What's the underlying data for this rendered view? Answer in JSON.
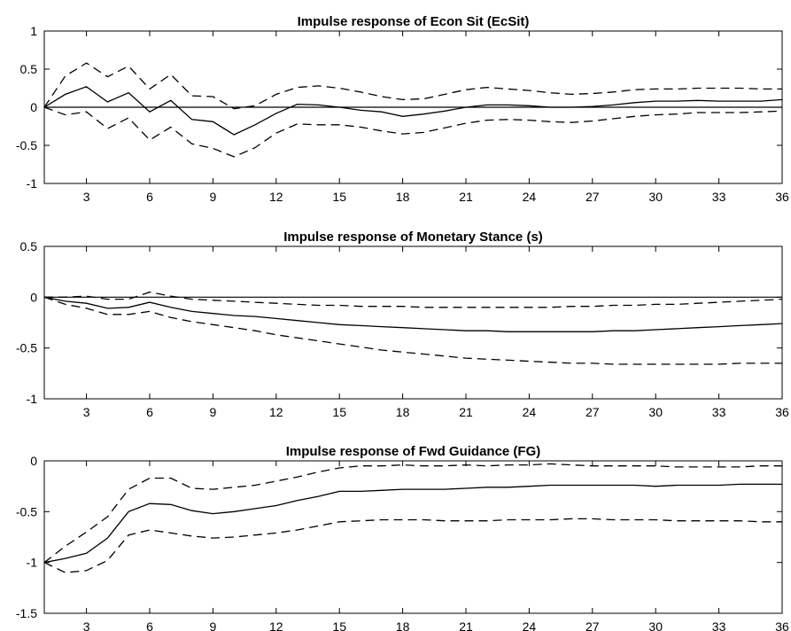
{
  "chart_data": [
    {
      "type": "line",
      "title": "Impulse response of Econ Sit (EcSit)",
      "xlabel": "",
      "ylabel": "",
      "xlim": [
        1,
        36
      ],
      "ylim": [
        -1,
        1
      ],
      "xticks": [
        3,
        6,
        9,
        12,
        15,
        18,
        21,
        24,
        27,
        30,
        33,
        36
      ],
      "yticks": [
        -1,
        -0.5,
        0,
        0.5,
        1
      ],
      "ytick_labels": [
        "-1",
        "-0.5",
        "0",
        "0.5",
        "1"
      ],
      "zero_line": true,
      "x": [
        1,
        2,
        3,
        4,
        5,
        6,
        7,
        8,
        9,
        10,
        11,
        12,
        13,
        14,
        15,
        16,
        17,
        18,
        19,
        20,
        21,
        22,
        23,
        24,
        25,
        26,
        27,
        28,
        29,
        30,
        31,
        32,
        33,
        34,
        35,
        36
      ],
      "series": [
        {
          "style": "solid",
          "values": [
            0,
            0.17,
            0.27,
            0.07,
            0.19,
            -0.06,
            0.09,
            -0.16,
            -0.19,
            -0.36,
            -0.23,
            -0.08,
            0.04,
            0.03,
            0.0,
            -0.04,
            -0.06,
            -0.12,
            -0.09,
            -0.05,
            0.0,
            0.03,
            0.03,
            0.02,
            0.0,
            0.0,
            0.01,
            0.03,
            0.06,
            0.08,
            0.08,
            0.09,
            0.08,
            0.08,
            0.08,
            0.1
          ]
        },
        {
          "style": "dashed",
          "values": [
            0,
            0.41,
            0.58,
            0.4,
            0.54,
            0.24,
            0.43,
            0.15,
            0.14,
            -0.02,
            0.02,
            0.17,
            0.26,
            0.28,
            0.25,
            0.2,
            0.14,
            0.1,
            0.11,
            0.17,
            0.23,
            0.26,
            0.24,
            0.22,
            0.19,
            0.17,
            0.18,
            0.2,
            0.23,
            0.24,
            0.24,
            0.25,
            0.25,
            0.25,
            0.24,
            0.24
          ]
        },
        {
          "style": "dashed",
          "values": [
            0,
            -0.1,
            -0.06,
            -0.28,
            -0.14,
            -0.43,
            -0.26,
            -0.48,
            -0.54,
            -0.65,
            -0.53,
            -0.34,
            -0.22,
            -0.23,
            -0.23,
            -0.26,
            -0.31,
            -0.35,
            -0.33,
            -0.27,
            -0.21,
            -0.17,
            -0.16,
            -0.17,
            -0.19,
            -0.2,
            -0.18,
            -0.15,
            -0.12,
            -0.1,
            -0.09,
            -0.07,
            -0.07,
            -0.07,
            -0.06,
            -0.05
          ]
        }
      ]
    },
    {
      "type": "line",
      "title": "Impulse response of Monetary Stance (s)",
      "xlabel": "",
      "ylabel": "",
      "xlim": [
        1,
        36
      ],
      "ylim": [
        -1,
        0.5
      ],
      "xticks": [
        3,
        6,
        9,
        12,
        15,
        18,
        21,
        24,
        27,
        30,
        33,
        36
      ],
      "yticks": [
        -1,
        -0.5,
        0,
        0.5
      ],
      "ytick_labels": [
        "-1",
        "-0.5",
        "0",
        "0.5"
      ],
      "zero_line": true,
      "x": [
        1,
        2,
        3,
        4,
        5,
        6,
        7,
        8,
        9,
        10,
        11,
        12,
        13,
        14,
        15,
        16,
        17,
        18,
        19,
        20,
        21,
        22,
        23,
        24,
        25,
        26,
        27,
        28,
        29,
        30,
        31,
        32,
        33,
        34,
        35,
        36
      ],
      "series": [
        {
          "style": "solid",
          "values": [
            0,
            -0.04,
            -0.06,
            -0.11,
            -0.1,
            -0.05,
            -0.1,
            -0.14,
            -0.16,
            -0.18,
            -0.19,
            -0.21,
            -0.23,
            -0.25,
            -0.27,
            -0.28,
            -0.29,
            -0.3,
            -0.31,
            -0.32,
            -0.33,
            -0.33,
            -0.34,
            -0.34,
            -0.34,
            -0.34,
            -0.34,
            -0.33,
            -0.33,
            -0.32,
            -0.31,
            -0.3,
            -0.29,
            -0.28,
            -0.27,
            -0.26
          ]
        },
        {
          "style": "dashed",
          "values": [
            0,
            0.0,
            0.01,
            -0.02,
            -0.02,
            0.05,
            0.01,
            -0.02,
            -0.03,
            -0.04,
            -0.05,
            -0.06,
            -0.07,
            -0.08,
            -0.08,
            -0.09,
            -0.09,
            -0.09,
            -0.1,
            -0.1,
            -0.1,
            -0.1,
            -0.1,
            -0.1,
            -0.1,
            -0.09,
            -0.09,
            -0.08,
            -0.08,
            -0.07,
            -0.07,
            -0.06,
            -0.05,
            -0.04,
            -0.03,
            -0.02
          ]
        },
        {
          "style": "dashed",
          "values": [
            0,
            -0.07,
            -0.11,
            -0.17,
            -0.17,
            -0.14,
            -0.2,
            -0.24,
            -0.27,
            -0.3,
            -0.33,
            -0.37,
            -0.4,
            -0.43,
            -0.46,
            -0.49,
            -0.52,
            -0.54,
            -0.56,
            -0.58,
            -0.6,
            -0.61,
            -0.62,
            -0.63,
            -0.64,
            -0.65,
            -0.65,
            -0.66,
            -0.66,
            -0.66,
            -0.66,
            -0.66,
            -0.66,
            -0.65,
            -0.65,
            -0.65
          ]
        }
      ]
    },
    {
      "type": "line",
      "title": "Impulse response of Fwd Guidance (FG)",
      "xlabel": "",
      "ylabel": "",
      "xlim": [
        1,
        36
      ],
      "ylim": [
        -1.5,
        0
      ],
      "xticks": [
        3,
        6,
        9,
        12,
        15,
        18,
        21,
        24,
        27,
        30,
        33,
        36
      ],
      "yticks": [
        -1.5,
        -1,
        -0.5,
        0
      ],
      "ytick_labels": [
        "-1.5",
        "-1",
        "-0.5",
        "0"
      ],
      "zero_line": false,
      "x": [
        1,
        2,
        3,
        4,
        5,
        6,
        7,
        8,
        9,
        10,
        11,
        12,
        13,
        14,
        15,
        16,
        17,
        18,
        19,
        20,
        21,
        22,
        23,
        24,
        25,
        26,
        27,
        28,
        29,
        30,
        31,
        32,
        33,
        34,
        35,
        36
      ],
      "series": [
        {
          "style": "solid",
          "values": [
            -1.0,
            -0.96,
            -0.91,
            -0.76,
            -0.5,
            -0.42,
            -0.43,
            -0.49,
            -0.52,
            -0.5,
            -0.47,
            -0.44,
            -0.39,
            -0.35,
            -0.3,
            -0.3,
            -0.29,
            -0.28,
            -0.28,
            -0.28,
            -0.27,
            -0.26,
            -0.26,
            -0.25,
            -0.24,
            -0.24,
            -0.24,
            -0.24,
            -0.24,
            -0.25,
            -0.24,
            -0.24,
            -0.24,
            -0.23,
            -0.23,
            -0.23
          ]
        },
        {
          "style": "dashed",
          "values": [
            -1.0,
            -0.84,
            -0.7,
            -0.55,
            -0.28,
            -0.17,
            -0.17,
            -0.27,
            -0.28,
            -0.26,
            -0.24,
            -0.2,
            -0.16,
            -0.11,
            -0.07,
            -0.05,
            -0.05,
            -0.04,
            -0.05,
            -0.05,
            -0.04,
            -0.05,
            -0.04,
            -0.04,
            -0.03,
            -0.04,
            -0.05,
            -0.05,
            -0.05,
            -0.05,
            -0.06,
            -0.06,
            -0.06,
            -0.06,
            -0.05,
            -0.05
          ]
        },
        {
          "style": "dashed",
          "values": [
            -1.0,
            -1.1,
            -1.08,
            -0.98,
            -0.73,
            -0.68,
            -0.71,
            -0.74,
            -0.76,
            -0.75,
            -0.73,
            -0.71,
            -0.68,
            -0.64,
            -0.6,
            -0.59,
            -0.58,
            -0.58,
            -0.58,
            -0.59,
            -0.59,
            -0.59,
            -0.58,
            -0.58,
            -0.58,
            -0.57,
            -0.57,
            -0.58,
            -0.58,
            -0.58,
            -0.59,
            -0.59,
            -0.59,
            -0.59,
            -0.6,
            -0.6
          ]
        }
      ]
    }
  ]
}
